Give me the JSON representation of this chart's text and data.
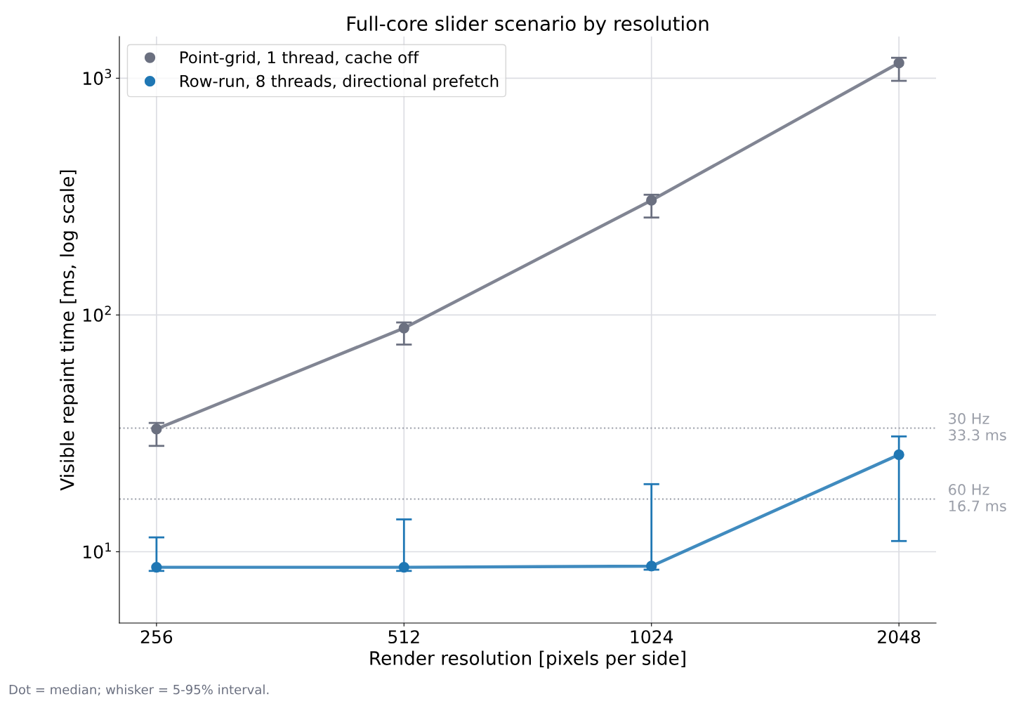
{
  "chart_data": {
    "type": "line",
    "title": "Full-core slider scenario by resolution",
    "xlabel": "Render resolution [pixels per side]",
    "ylabel": "Visible repaint time [ms, log scale]",
    "categories": [
      "256",
      "512",
      "1024",
      "2048"
    ],
    "series": [
      {
        "name": "Point-grid, 1 thread, cache off",
        "color": "#6b7080",
        "values": [
          33,
          88,
          305,
          1160
        ],
        "errors": [
          [
            28,
            35
          ],
          [
            75,
            93
          ],
          [
            258,
            322
          ],
          [
            975,
            1220
          ]
        ]
      },
      {
        "name": "Row-run, 8 threads, directional prefetch",
        "color": "#1f77b4",
        "values": [
          8.6,
          8.6,
          8.7,
          25.7
        ],
        "errors": [
          [
            8.3,
            11.5
          ],
          [
            8.3,
            13.7
          ],
          [
            8.4,
            19.3
          ],
          [
            11.1,
            30.7
          ]
        ]
      }
    ],
    "log": true,
    "ylim": [
      5,
      1500
    ],
    "yticks": [
      {
        "value": 10,
        "label": "10$^{1}$"
      },
      {
        "value": 100,
        "label": "10$^{2}$"
      },
      {
        "value": 1000,
        "label": "10$^{3}$"
      }
    ],
    "ref_lines": [
      {
        "axis": "y",
        "value": 33.3,
        "label": "30 Hz\n33.3 ms",
        "color": "#9a9ea8",
        "line_style": "dotted"
      },
      {
        "axis": "y",
        "value": 16.7,
        "label": "60 Hz\n16.7 ms",
        "color": "#9a9ea8",
        "line_style": "dotted"
      }
    ],
    "grid": true,
    "legend": "top left",
    "marker": "circle",
    "line_style": "solid",
    "annotations": [
      "Dot = median; whisker = 5-95% interval."
    ]
  }
}
